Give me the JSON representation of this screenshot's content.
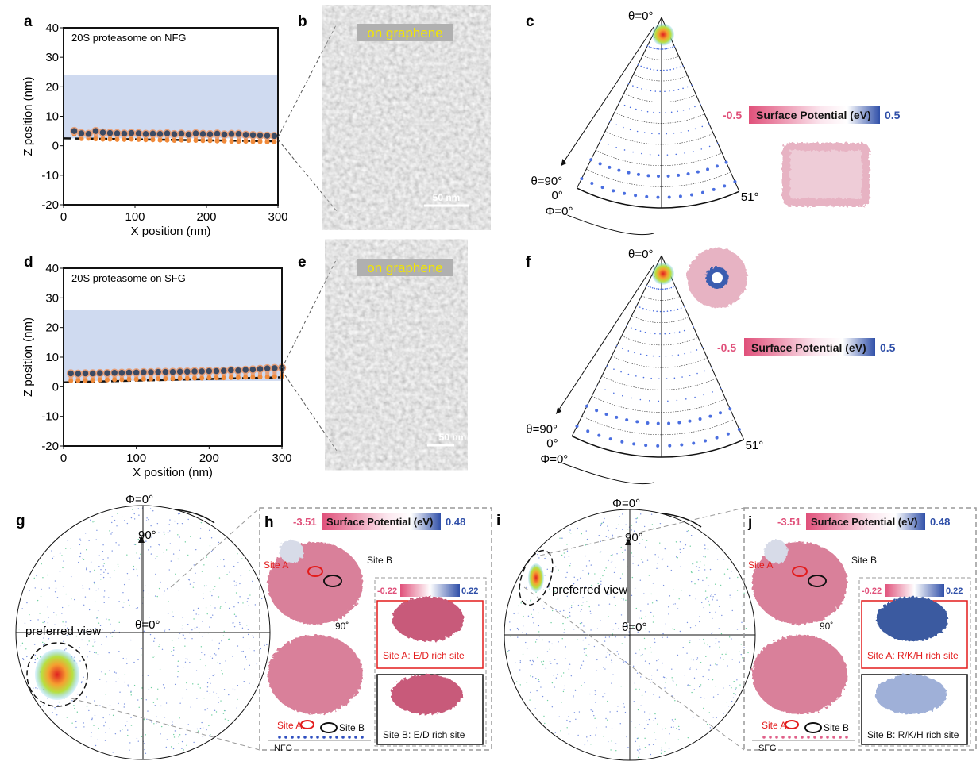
{
  "panel_labels": {
    "a": "a",
    "b": "b",
    "c": "c",
    "d": "d",
    "e": "e",
    "f": "f",
    "g": "g",
    "h": "h",
    "i": "i",
    "j": "j"
  },
  "chart_data": [
    {
      "type": "scatter",
      "panel": "a",
      "title": "20S proteasome on NFG",
      "xlabel": "X position (nm)",
      "ylabel": "Z position (nm)",
      "xlim": [
        0,
        300
      ],
      "ylim": [
        -20,
        40
      ],
      "xticks": [
        "0",
        "100",
        "200",
        "300"
      ],
      "yticks": [
        "-20",
        "-10",
        "0",
        "10",
        "20",
        "30",
        "40"
      ],
      "shaded_band": [
        2.5,
        24
      ],
      "baseline": {
        "x": [
          0,
          300
        ],
        "z": [
          2.5,
          1.5
        ]
      },
      "x": [
        15,
        25,
        35,
        45,
        55,
        65,
        75,
        85,
        95,
        105,
        115,
        125,
        135,
        145,
        155,
        165,
        175,
        185,
        195,
        205,
        215,
        225,
        235,
        245,
        255,
        265,
        275,
        285,
        295
      ],
      "z_top": [
        5,
        4.2,
        4,
        5,
        4.5,
        4.3,
        4.2,
        4.1,
        4.3,
        4.2,
        4,
        4.1,
        4,
        4.2,
        3.9,
        4.1,
        3.8,
        4.2,
        4,
        3.9,
        4.1,
        3.8,
        4,
        4,
        3.7,
        3.6,
        3.5,
        3.4,
        3.3
      ],
      "z_bottom": [
        4,
        2.4,
        2.5,
        2.3,
        2.2,
        2.2,
        2.1,
        2.1,
        2.2,
        2.1,
        2,
        2,
        1.9,
        1.9,
        1.8,
        1.9,
        1.8,
        1.8,
        1.7,
        1.7,
        1.6,
        1.6,
        1.5,
        1.5,
        1.5,
        1.4,
        1.4,
        1.3,
        1.3
      ],
      "colors": {
        "top": "#3b4a63",
        "bottom": "#f08a3a",
        "band": "#cfdaf0"
      }
    },
    {
      "type": "scatter",
      "panel": "d",
      "title": "20S proteasome on SFG",
      "xlabel": "X position (nm)",
      "ylabel": "Z position (nm)",
      "xlim": [
        0,
        300
      ],
      "ylim": [
        -20,
        40
      ],
      "xticks": [
        "0",
        "100",
        "200",
        "300"
      ],
      "yticks": [
        "-20",
        "-10",
        "0",
        "10",
        "20",
        "30",
        "40"
      ],
      "shaded_band": [
        2,
        26
      ],
      "baseline": {
        "x": [
          0,
          300
        ],
        "z": [
          1.5,
          3.2
        ]
      },
      "x": [
        10,
        20,
        30,
        40,
        50,
        60,
        70,
        80,
        90,
        100,
        110,
        120,
        130,
        140,
        150,
        160,
        170,
        180,
        190,
        200,
        210,
        220,
        230,
        240,
        250,
        260,
        270,
        280,
        290,
        300
      ],
      "z_top": [
        4.5,
        4.4,
        4.5,
        4.5,
        4.6,
        4.6,
        4.7,
        4.7,
        4.8,
        4.8,
        4.9,
        4.9,
        5,
        5,
        5,
        5.1,
        5.1,
        5.2,
        5.2,
        5.3,
        5.3,
        5.4,
        5.6,
        5.5,
        5.7,
        5.8,
        6,
        6.2,
        6.3,
        6.4
      ],
      "z_bottom": [
        2,
        2.1,
        2.1,
        2.2,
        2.3,
        2.3,
        2.4,
        2.4,
        2.5,
        2.5,
        2.6,
        2.6,
        2.7,
        2.7,
        2.7,
        2.8,
        2.8,
        2.9,
        2.9,
        3,
        3,
        3,
        3.1,
        3.1,
        3.2,
        3.2,
        3.3,
        3.3,
        3.4,
        3.5
      ],
      "colors": {
        "top": "#3b4a63",
        "bottom": "#f08a3a",
        "band": "#cfdaf0"
      }
    }
  ],
  "micrographs": {
    "b": {
      "caption": "on graphene",
      "scale": "50 nm"
    },
    "e": {
      "caption": "on graphene",
      "scale": "50 nm"
    }
  },
  "wedges": {
    "c": {
      "theta0": "θ=0°",
      "theta90": "θ=90°",
      "phi_start": "0°",
      "phi_end": "51°",
      "phi0": "Φ=0°"
    },
    "f": {
      "theta0": "θ=0°",
      "theta90": "θ=90°",
      "phi_start": "0°",
      "phi_end": "51°",
      "phi0": "Φ=0°"
    }
  },
  "colorbars": {
    "c": {
      "min": "-0.5",
      "max": "0.5",
      "label": "Surface Potential (eV)"
    },
    "f": {
      "min": "-0.5",
      "max": "0.5",
      "label": "Surface Potential (eV)"
    },
    "h": {
      "min": "-3.51",
      "max": "0.48",
      "label": "Surface Potential (eV)"
    },
    "h_inset": {
      "min": "-0.22",
      "max": "0.22"
    },
    "j": {
      "min": "-3.51",
      "max": "0.48",
      "label": "Surface Potential (eV)"
    },
    "j_inset": {
      "min": "-0.22",
      "max": "0.22"
    },
    "colors": {
      "neg": "#e0507a",
      "mid": "#ffffff",
      "pos": "#2f4fa8"
    }
  },
  "polar": {
    "g": {
      "phi0": "Φ=0°",
      "ninety": "90°",
      "theta0": "θ=0°",
      "preferred": "preferred view"
    },
    "i": {
      "phi0": "Φ=0°",
      "ninety": "90°",
      "theta0": "θ=0°",
      "preferred": "preferred view"
    }
  },
  "structures": {
    "h": {
      "site_a": "Site A",
      "site_b": "Site B",
      "rotation": "90˚",
      "substrate": "NFG",
      "inset_a": "Site A: E/D rich site",
      "inset_b": "Site B: E/D rich site"
    },
    "j": {
      "site_a": "Site A",
      "site_b": "Site B",
      "rotation": "90˚",
      "substrate": "SFG",
      "inset_a": "Site A: R/K/H rich site",
      "inset_b": "Site B: R/K/H rich site"
    }
  }
}
